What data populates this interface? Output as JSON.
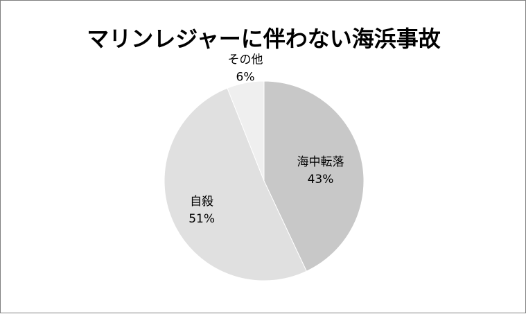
{
  "chart_data": {
    "type": "pie",
    "title": "マリンレジャーに伴わない海浜事故",
    "categories": [
      "海中転落",
      "自殺",
      "その他"
    ],
    "values": [
      43,
      51,
      6
    ],
    "value_labels": [
      "43%",
      "51%",
      "6%"
    ],
    "colors": [
      "#c8c8c8",
      "#e0e0e0",
      "#efefef"
    ],
    "legend": "none"
  }
}
